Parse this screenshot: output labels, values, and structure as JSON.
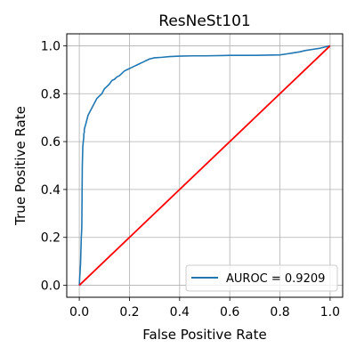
{
  "chart_data": {
    "type": "line",
    "title": "ResNeSt101",
    "xlabel": "False Positive Rate",
    "ylabel": "True Positive Rate",
    "xlim": [
      -0.05,
      1.05
    ],
    "ylim": [
      -0.05,
      1.05
    ],
    "xticks": [
      "0.0",
      "0.2",
      "0.4",
      "0.6",
      "0.8",
      "1.0"
    ],
    "yticks": [
      "0.0",
      "0.2",
      "0.4",
      "0.6",
      "0.8",
      "1.0"
    ],
    "grid": true,
    "legend_position": "lower-right",
    "series": [
      {
        "name": "AUROC = 0.9209",
        "color": "#1f77b4",
        "x": [
          0.0,
          0.005,
          0.008,
          0.01,
          0.012,
          0.014,
          0.016,
          0.018,
          0.018,
          0.02,
          0.02,
          0.022,
          0.025,
          0.03,
          0.035,
          0.04,
          0.045,
          0.05,
          0.055,
          0.06,
          0.065,
          0.07,
          0.08,
          0.09,
          0.1,
          0.11,
          0.12,
          0.13,
          0.14,
          0.15,
          0.16,
          0.17,
          0.18,
          0.19,
          0.2,
          0.21,
          0.22,
          0.23,
          0.24,
          0.25,
          0.26,
          0.27,
          0.28,
          0.3,
          0.33,
          0.36,
          0.4,
          0.45,
          0.5,
          0.6,
          0.7,
          0.8,
          0.82,
          0.85,
          0.88,
          0.9,
          0.93,
          0.96,
          1.0
        ],
        "y": [
          0.0,
          0.09,
          0.2,
          0.24,
          0.5,
          0.58,
          0.6,
          0.62,
          0.63,
          0.64,
          0.65,
          0.66,
          0.67,
          0.69,
          0.71,
          0.72,
          0.73,
          0.74,
          0.75,
          0.76,
          0.77,
          0.78,
          0.79,
          0.8,
          0.82,
          0.83,
          0.84,
          0.855,
          0.86,
          0.87,
          0.875,
          0.885,
          0.895,
          0.9,
          0.905,
          0.91,
          0.915,
          0.92,
          0.925,
          0.93,
          0.935,
          0.94,
          0.945,
          0.95,
          0.952,
          0.955,
          0.957,
          0.958,
          0.958,
          0.96,
          0.96,
          0.962,
          0.965,
          0.97,
          0.975,
          0.98,
          0.985,
          0.99,
          1.0
        ]
      },
      {
        "name": "",
        "color": "#ff0000",
        "x": [
          0.0,
          1.0
        ],
        "y": [
          0.0,
          1.0
        ]
      }
    ]
  }
}
